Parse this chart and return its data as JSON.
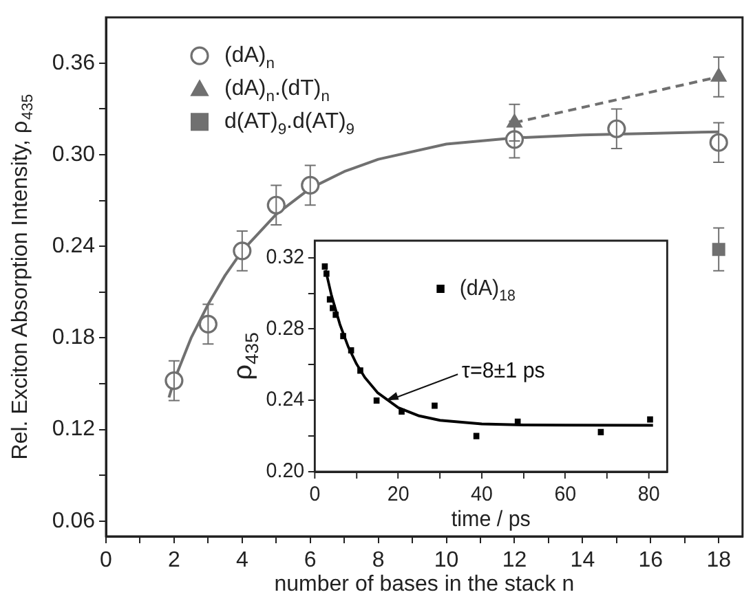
{
  "chart_data": [
    {
      "type": "scatter",
      "xlabel": "number of bases in the stack n",
      "ylabel": "Rel. Exciton Absorption Intensity, ρ$_{435}$",
      "xlim": [
        0,
        18.7
      ],
      "xticks": [
        0,
        {
          "value": 1,
          "label": null
        },
        2,
        {
          "value": 3,
          "label": null
        },
        4,
        {
          "value": 5,
          "label": null
        },
        6,
        {
          "value": 7,
          "label": null
        },
        8,
        {
          "value": 9,
          "label": null
        },
        10,
        {
          "value": 11,
          "label": null
        },
        12,
        {
          "value": 13,
          "label": null
        },
        14,
        {
          "value": 15,
          "label": null
        },
        16,
        {
          "value": 17,
          "label": null
        },
        18
      ],
      "ylim": [
        0.05,
        0.39
      ],
      "yticks": [
        0.06,
        {
          "value": 0.09,
          "label": null
        },
        0.12,
        {
          "value": 0.15,
          "label": null
        },
        0.18,
        {
          "value": 0.21,
          "label": null
        },
        0.24,
        {
          "value": 0.27,
          "label": null
        },
        {
          "value": 0.3,
          "label": "0.30"
        },
        {
          "value": 0.33,
          "label": null
        },
        0.36
      ],
      "grid": false,
      "legend": "top left",
      "series": [
        {
          "name": "(dA)$_{n}$",
          "marker": "circle",
          "color": "#707070",
          "x": [
            2,
            3,
            4,
            5,
            6,
            12,
            15,
            18
          ],
          "values": [
            0.152,
            0.189,
            0.237,
            0.267,
            0.28,
            0.31,
            0.317,
            0.308
          ],
          "errors": [
            0.013,
            0.013,
            0.013,
            0.013,
            0.013,
            0.012,
            0.013,
            0.013
          ]
        },
        {
          "type": "line",
          "marker": "none",
          "line_style": "solid",
          "color": "#707070",
          "x": [
            1.85,
            2,
            2.5,
            3,
            3.5,
            4,
            5,
            6,
            7,
            8,
            10,
            12,
            14,
            16,
            18
          ],
          "values": [
            0.141,
            0.152,
            0.18,
            0.202,
            0.221,
            0.237,
            0.261,
            0.278,
            0.289,
            0.297,
            0.307,
            0.311,
            0.313,
            0.314,
            0.315
          ]
        },
        {
          "name": "(dA)$_{n}$.(dT)$_{n}$",
          "type": "line",
          "marker": "triangle",
          "line_style": "dashed",
          "color": "#707070",
          "x": [
            12,
            18
          ],
          "values": [
            0.321,
            0.351
          ],
          "errors": [
            0.012,
            0.013
          ]
        },
        {
          "name": "d(AT)$_{9}$.d(AT)$_{9}$",
          "marker": "square",
          "color": "#707070",
          "x": [
            18
          ],
          "values": [
            0.238
          ],
          "errors": [
            0.014
          ]
        }
      ]
    },
    {
      "type": "scatter",
      "xlabel": "time / ps",
      "ylabel": "ρ$_{435}$",
      "xlim": [
        0,
        84.4
      ],
      "xticks": [
        0,
        {
          "value": 10,
          "label": null
        },
        20,
        {
          "value": 30,
          "label": null
        },
        40,
        {
          "value": 50,
          "label": null
        },
        60,
        {
          "value": 70,
          "label": null
        },
        80
      ],
      "ylim": [
        0.2,
        0.3295
      ],
      "yticks": [
        {
          "value": 0.2,
          "label": "0.20"
        },
        {
          "value": 0.22,
          "label": null
        },
        0.24,
        {
          "value": 0.26,
          "label": null
        },
        0.28,
        {
          "value": 0.3,
          "label": null
        },
        0.32
      ],
      "grid": false,
      "legend": "top right",
      "annotations": [
        {
          "text": "τ=8±1 ps",
          "x": 17,
          "y": 0.24
        }
      ],
      "series": [
        {
          "name": "(dA)$_{18}$",
          "marker": "square",
          "color": "#000000",
          "x": [
            2.4,
            2.8,
            3.6,
            4.3,
            4.7,
            5.0,
            6.8,
            8.7,
            10.9,
            14.8,
            20.8,
            28.7,
            38.7,
            48.6,
            68.5,
            80.3
          ],
          "values": [
            0.315,
            0.311,
            0.2966,
            0.2917,
            null,
            0.288,
            0.276,
            0.268,
            0.2567,
            0.2399,
            0.2337,
            0.237,
            0.22,
            0.228,
            0.2222,
            0.2293
          ]
        },
        {
          "type": "line",
          "marker": "none",
          "line_style": "solid",
          "color": "#000000",
          "x": [
            2.6,
            4,
            6,
            8,
            10,
            12,
            15,
            20,
            25,
            30,
            40,
            50,
            60,
            81
          ],
          "values": [
            0.313,
            0.2988,
            0.2827,
            0.2701,
            0.2604,
            0.2528,
            0.2444,
            0.2359,
            0.2313,
            0.2288,
            0.2268,
            0.2262,
            0.2261,
            0.226
          ]
        }
      ]
    }
  ]
}
